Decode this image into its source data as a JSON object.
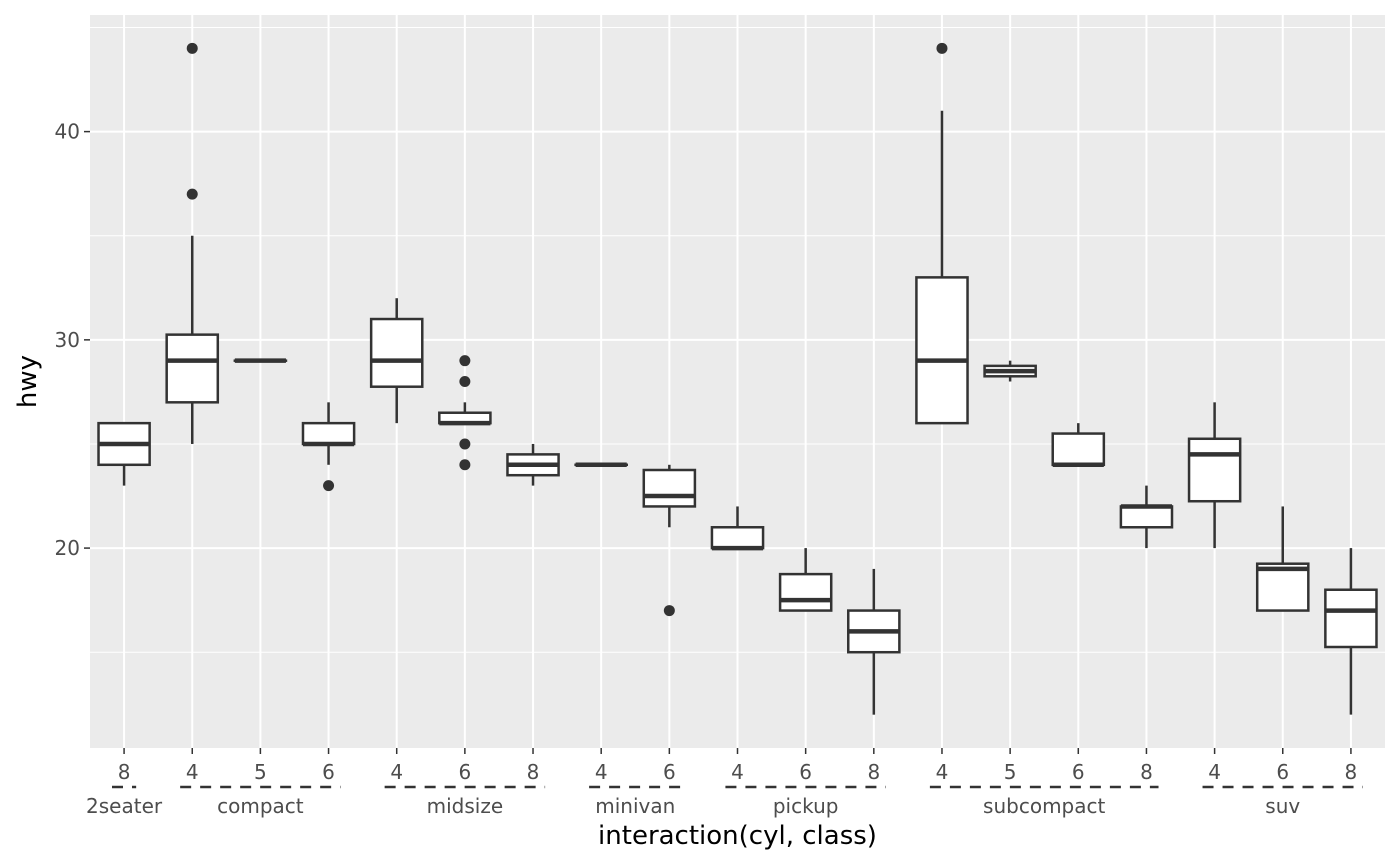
{
  "chart_data": {
    "type": "boxplot",
    "xlabel": "interaction(cyl, class)",
    "ylabel": "hwy",
    "ylim": [
      10.4,
      45.6
    ],
    "y_ticks": [
      20,
      30,
      40
    ],
    "grid": true,
    "legend": "none",
    "colors": {
      "panel": "#EBEBEB",
      "grid": "#FFFFFF",
      "box_line": "#333333",
      "box_fill": "#FFFFFF",
      "tick_text": "#4D4D4D"
    },
    "groups": [
      {
        "label": "2seater",
        "start": 0,
        "end": 0
      },
      {
        "label": "compact",
        "start": 1,
        "end": 3
      },
      {
        "label": "midsize",
        "start": 4,
        "end": 6
      },
      {
        "label": "minivan",
        "start": 7,
        "end": 8
      },
      {
        "label": "pickup",
        "start": 9,
        "end": 11
      },
      {
        "label": "subcompact",
        "start": 12,
        "end": 15
      },
      {
        "label": "suv",
        "start": 16,
        "end": 18
      }
    ],
    "boxes": [
      {
        "cyl": "8",
        "class": "2seater",
        "lower_whisker": 23,
        "q1": 24,
        "median": 25,
        "q3": 26,
        "upper_whisker": 26,
        "outliers": []
      },
      {
        "cyl": "4",
        "class": "compact",
        "lower_whisker": 25,
        "q1": 27,
        "median": 29,
        "q3": 30.25,
        "upper_whisker": 35,
        "outliers": [
          37,
          44
        ]
      },
      {
        "cyl": "5",
        "class": "compact",
        "lower_whisker": 29,
        "q1": 29,
        "median": 29,
        "q3": 29,
        "upper_whisker": 29,
        "outliers": []
      },
      {
        "cyl": "6",
        "class": "compact",
        "lower_whisker": 24,
        "q1": 25,
        "median": 25,
        "q3": 26,
        "upper_whisker": 27,
        "outliers": [
          23
        ]
      },
      {
        "cyl": "4",
        "class": "midsize",
        "lower_whisker": 26,
        "q1": 27.75,
        "median": 29,
        "q3": 31,
        "upper_whisker": 32,
        "outliers": []
      },
      {
        "cyl": "6",
        "class": "midsize",
        "lower_whisker": 26,
        "q1": 26,
        "median": 26,
        "q3": 26.5,
        "upper_whisker": 27,
        "outliers": [
          24,
          25,
          28,
          29
        ]
      },
      {
        "cyl": "8",
        "class": "midsize",
        "lower_whisker": 23,
        "q1": 23.5,
        "median": 24,
        "q3": 24.5,
        "upper_whisker": 25,
        "outliers": []
      },
      {
        "cyl": "4",
        "class": "minivan",
        "lower_whisker": 24,
        "q1": 24,
        "median": 24,
        "q3": 24,
        "upper_whisker": 24,
        "outliers": []
      },
      {
        "cyl": "6",
        "class": "minivan",
        "lower_whisker": 21,
        "q1": 22,
        "median": 22.5,
        "q3": 23.75,
        "upper_whisker": 24,
        "outliers": [
          17
        ]
      },
      {
        "cyl": "4",
        "class": "pickup",
        "lower_whisker": 20,
        "q1": 20,
        "median": 20,
        "q3": 21,
        "upper_whisker": 22,
        "outliers": []
      },
      {
        "cyl": "6",
        "class": "pickup",
        "lower_whisker": 17,
        "q1": 17,
        "median": 17.5,
        "q3": 18.75,
        "upper_whisker": 20,
        "outliers": []
      },
      {
        "cyl": "8",
        "class": "pickup",
        "lower_whisker": 12,
        "q1": 15,
        "median": 16,
        "q3": 17,
        "upper_whisker": 19,
        "outliers": []
      },
      {
        "cyl": "4",
        "class": "subcompact",
        "lower_whisker": 26,
        "q1": 26,
        "median": 29,
        "q3": 33,
        "upper_whisker": 41,
        "outliers": [
          44
        ]
      },
      {
        "cyl": "5",
        "class": "subcompact",
        "lower_whisker": 28,
        "q1": 28.25,
        "median": 28.5,
        "q3": 28.75,
        "upper_whisker": 29,
        "outliers": []
      },
      {
        "cyl": "6",
        "class": "subcompact",
        "lower_whisker": 24,
        "q1": 24,
        "median": 24,
        "q3": 25.5,
        "upper_whisker": 26,
        "outliers": []
      },
      {
        "cyl": "8",
        "class": "subcompact",
        "lower_whisker": 20,
        "q1": 21,
        "median": 22,
        "q3": 22,
        "upper_whisker": 23,
        "outliers": []
      },
      {
        "cyl": "4",
        "class": "suv",
        "lower_whisker": 20,
        "q1": 22.25,
        "median": 24.5,
        "q3": 25.25,
        "upper_whisker": 27,
        "outliers": []
      },
      {
        "cyl": "6",
        "class": "suv",
        "lower_whisker": 17,
        "q1": 17,
        "median": 19,
        "q3": 19.25,
        "upper_whisker": 22,
        "outliers": []
      },
      {
        "cyl": "8",
        "class": "suv",
        "lower_whisker": 12,
        "q1": 15.25,
        "median": 17,
        "q3": 18,
        "upper_whisker": 20,
        "outliers": []
      }
    ]
  }
}
